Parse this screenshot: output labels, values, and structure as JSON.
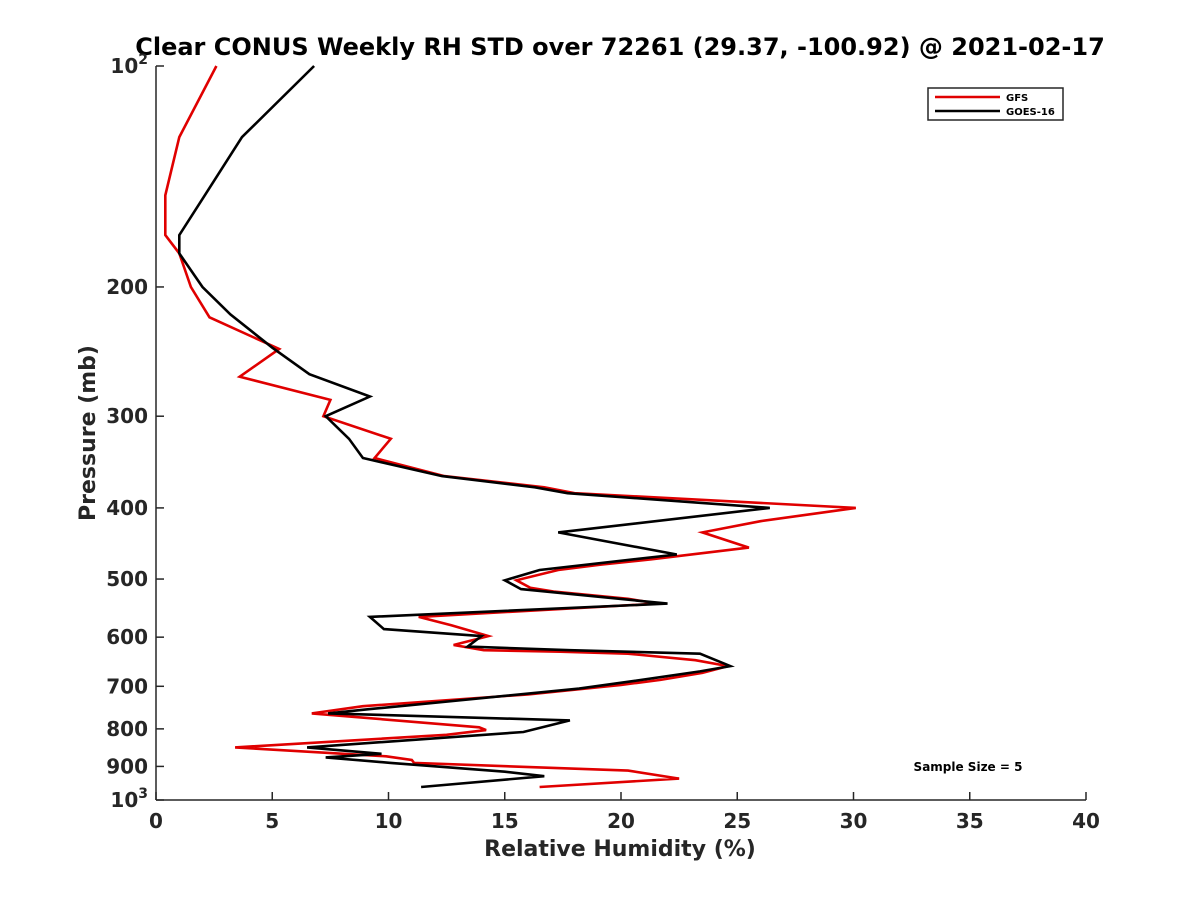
{
  "chart_data": {
    "type": "line",
    "title": "Clear CONUS Weekly RH STD over 72261 (29.37, -100.92) @ 2021-02-17",
    "xlabel": "Relative Humidity (%)",
    "ylabel": "Pressure (mb)",
    "xlim": [
      0,
      40
    ],
    "ylim": [
      100,
      1000
    ],
    "y_scale": "log",
    "y_reversed": true,
    "grid": false,
    "legend_position": "top-right",
    "x_ticks": [
      0,
      5,
      10,
      15,
      20,
      25,
      30,
      35,
      40
    ],
    "y_ticks": [
      {
        "value": 100,
        "base": "10",
        "exp": "2"
      },
      {
        "value": 200,
        "label": "200"
      },
      {
        "value": 300,
        "label": "300"
      },
      {
        "value": 400,
        "label": "400"
      },
      {
        "value": 500,
        "label": "500"
      },
      {
        "value": 600,
        "label": "600"
      },
      {
        "value": 700,
        "label": "700"
      },
      {
        "value": 800,
        "label": "800"
      },
      {
        "value": 900,
        "label": "900"
      },
      {
        "value": 1000,
        "base": "10",
        "exp": "3"
      }
    ],
    "annotation": "Sample Size = 5",
    "series": [
      {
        "name": "GFS",
        "color": "#e00000",
        "points": [
          [
            2.6,
            100
          ],
          [
            1.0,
            125
          ],
          [
            0.4,
            150
          ],
          [
            0.4,
            170
          ],
          [
            1.0,
            180
          ],
          [
            1.5,
            200
          ],
          [
            2.3,
            220
          ],
          [
            5.3,
            243
          ],
          [
            3.6,
            265
          ],
          [
            7.5,
            285
          ],
          [
            7.2,
            300
          ],
          [
            10.1,
            322
          ],
          [
            9.4,
            342
          ],
          [
            12.4,
            362
          ],
          [
            16.7,
            375
          ],
          [
            18.0,
            382
          ],
          [
            30.1,
            400
          ],
          [
            26.0,
            417
          ],
          [
            23.5,
            432
          ],
          [
            25.5,
            453
          ],
          [
            21.3,
            470
          ],
          [
            19.1,
            478
          ],
          [
            17.3,
            486
          ],
          [
            15.5,
            502
          ],
          [
            16.1,
            514
          ],
          [
            17.1,
            520
          ],
          [
            20.3,
            532
          ],
          [
            21.6,
            540
          ],
          [
            11.3,
            563
          ],
          [
            12.7,
            578
          ],
          [
            14.3,
            598
          ],
          [
            12.8,
            615
          ],
          [
            14.1,
            625
          ],
          [
            17.4,
            628
          ],
          [
            20.3,
            632
          ],
          [
            23.2,
            645
          ],
          [
            24.6,
            657
          ],
          [
            23.5,
            671
          ],
          [
            21.7,
            686
          ],
          [
            20.0,
            697
          ],
          [
            16.0,
            718
          ],
          [
            8.9,
            745
          ],
          [
            6.7,
            762
          ],
          [
            13.9,
            796
          ],
          [
            14.2,
            803
          ],
          [
            12.5,
            815
          ],
          [
            3.4,
            848
          ],
          [
            9.9,
            872
          ],
          [
            11.0,
            882
          ],
          [
            11.1,
            890
          ],
          [
            20.3,
            912
          ],
          [
            22.5,
            935
          ],
          [
            16.5,
            960
          ]
        ]
      },
      {
        "name": "GOES-16",
        "color": "#000000",
        "points": [
          [
            6.8,
            100
          ],
          [
            3.7,
            125
          ],
          [
            2.1,
            150
          ],
          [
            1.0,
            170
          ],
          [
            1.0,
            180
          ],
          [
            2.0,
            200
          ],
          [
            3.2,
            218
          ],
          [
            5.0,
            242
          ],
          [
            6.6,
            263
          ],
          [
            9.2,
            282
          ],
          [
            7.3,
            300
          ],
          [
            8.3,
            322
          ],
          [
            8.9,
            342
          ],
          [
            12.3,
            362
          ],
          [
            16.3,
            375
          ],
          [
            17.7,
            382
          ],
          [
            26.4,
            400
          ],
          [
            17.3,
            432
          ],
          [
            22.4,
            463
          ],
          [
            16.5,
            486
          ],
          [
            15.0,
            502
          ],
          [
            15.7,
            516
          ],
          [
            22.0,
            540
          ],
          [
            9.2,
            563
          ],
          [
            9.8,
            585
          ],
          [
            14.0,
            598
          ],
          [
            13.4,
            618
          ],
          [
            17.8,
            625
          ],
          [
            23.4,
            632
          ],
          [
            24.7,
            657
          ],
          [
            23.4,
            668
          ],
          [
            20.6,
            688
          ],
          [
            18.2,
            705
          ],
          [
            9.2,
            752
          ],
          [
            7.4,
            762
          ],
          [
            17.8,
            779
          ],
          [
            15.8,
            808
          ],
          [
            6.5,
            848
          ],
          [
            9.7,
            865
          ],
          [
            7.3,
            875
          ],
          [
            10.1,
            890
          ],
          [
            15.0,
            915
          ],
          [
            16.7,
            928
          ],
          [
            11.4,
            960
          ]
        ]
      }
    ]
  }
}
